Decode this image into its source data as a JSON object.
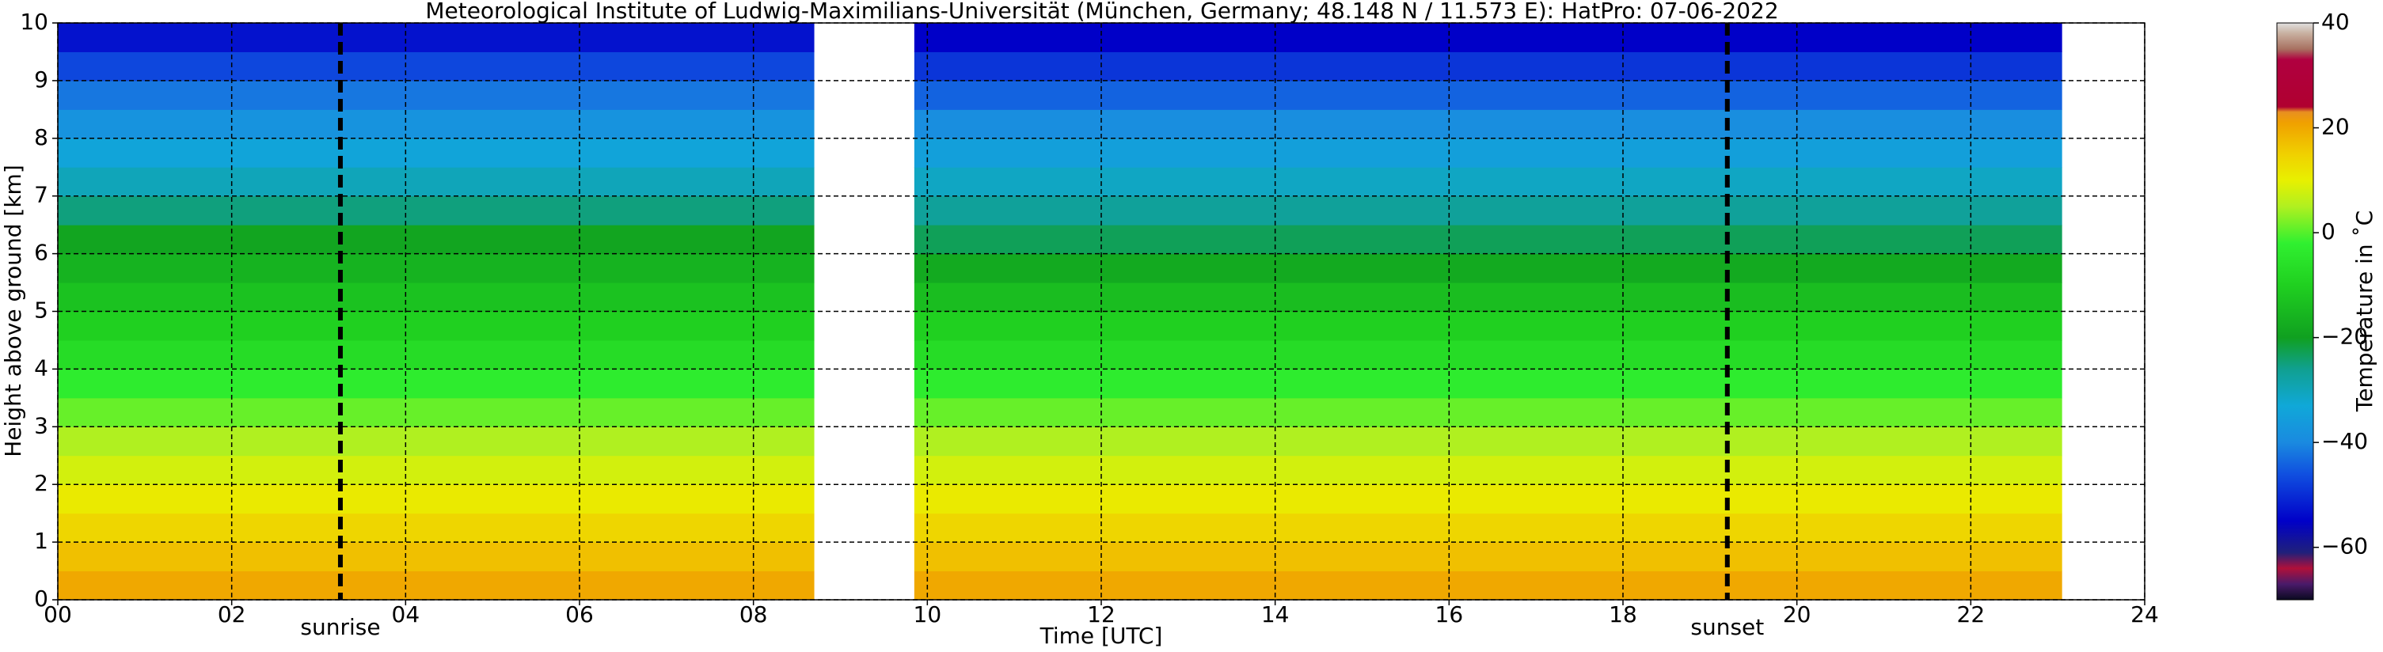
{
  "chart_data": {
    "type": "heatmap",
    "title": "Meteorological Institute of Ludwig-Maximilians-Universität (München, Germany; 48.148 N / 11.573 E):    HatPro: 07-06-2022",
    "x_label": "Time [UTC]",
    "y_label": "Height above ground [km]",
    "colorbar_label": "Temperature in ˚C",
    "x_bins": [
      0,
      8.7,
      9.85,
      23.05
    ],
    "y_bins": [
      0,
      0.5,
      1,
      1.5,
      2,
      2.5,
      3,
      3.5,
      4,
      4.5,
      5,
      5.5,
      6,
      6.5,
      7,
      7.5,
      8,
      8.5,
      9,
      9.5,
      10
    ],
    "values": [
      [
        20,
        null,
        20
      ],
      [
        17,
        null,
        17
      ],
      [
        14,
        null,
        14
      ],
      [
        11,
        null,
        11
      ],
      [
        8,
        null,
        8
      ],
      [
        5,
        null,
        5
      ],
      [
        1,
        null,
        1
      ],
      [
        -3,
        null,
        -3
      ],
      [
        -7,
        null,
        -7
      ],
      [
        -10,
        null,
        -10
      ],
      [
        -13,
        null,
        -14
      ],
      [
        -16,
        null,
        -18
      ],
      [
        -19,
        null,
        -23
      ],
      [
        -25,
        null,
        -27
      ],
      [
        -30,
        null,
        -31
      ],
      [
        -34,
        null,
        -35
      ],
      [
        -38,
        null,
        -39
      ],
      [
        -42,
        null,
        -44
      ],
      [
        -47,
        null,
        -49
      ],
      [
        -53,
        null,
        -55
      ]
    ],
    "colorscale": [
      [
        -70,
        "#0a0a20"
      ],
      [
        -67,
        "#4a1a6a"
      ],
      [
        -64,
        "#b0103a"
      ],
      [
        -61,
        "#20207a"
      ],
      [
        -55,
        "#0000c8"
      ],
      [
        -46,
        "#1050e0"
      ],
      [
        -40,
        "#1a8ae0"
      ],
      [
        -33,
        "#10a8d8"
      ],
      [
        -26,
        "#10a090"
      ],
      [
        -20,
        "#10a020"
      ],
      [
        -10,
        "#20d020"
      ],
      [
        -2,
        "#30f030"
      ],
      [
        5,
        "#b0f020"
      ],
      [
        10,
        "#e8f000"
      ],
      [
        15,
        "#f0d000"
      ],
      [
        21,
        "#f0a000"
      ],
      [
        23,
        "#e89020"
      ],
      [
        24,
        "#b00030"
      ],
      [
        33,
        "#b00040"
      ],
      [
        35,
        "#a87060"
      ],
      [
        38,
        "#c8b0a0"
      ],
      [
        40,
        "#e0e0e0"
      ]
    ],
    "clim": [
      -70,
      40
    ],
    "cticks": [
      {
        "value": -60,
        "label": "−60"
      },
      {
        "value": -40,
        "label": "−40"
      },
      {
        "value": -20,
        "label": "−20"
      },
      0,
      20,
      40
    ],
    "xlim": [
      0,
      24
    ],
    "ylim": [
      0,
      10
    ],
    "xticks": [
      {
        "value": 0,
        "label": "00"
      },
      {
        "value": 2,
        "label": "02"
      },
      {
        "value": 4,
        "label": "04"
      },
      {
        "value": 6,
        "label": "06"
      },
      {
        "value": 8,
        "label": "08"
      },
      10,
      12,
      14,
      16,
      18,
      20,
      22,
      24
    ],
    "yticks": [
      0,
      1,
      2,
      3,
      4,
      5,
      6,
      7,
      8,
      9,
      10
    ],
    "grid": true,
    "annotations": [
      {
        "x": 3.25,
        "label": "sunrise"
      },
      {
        "x": 19.2,
        "label": "sunset"
      }
    ]
  }
}
